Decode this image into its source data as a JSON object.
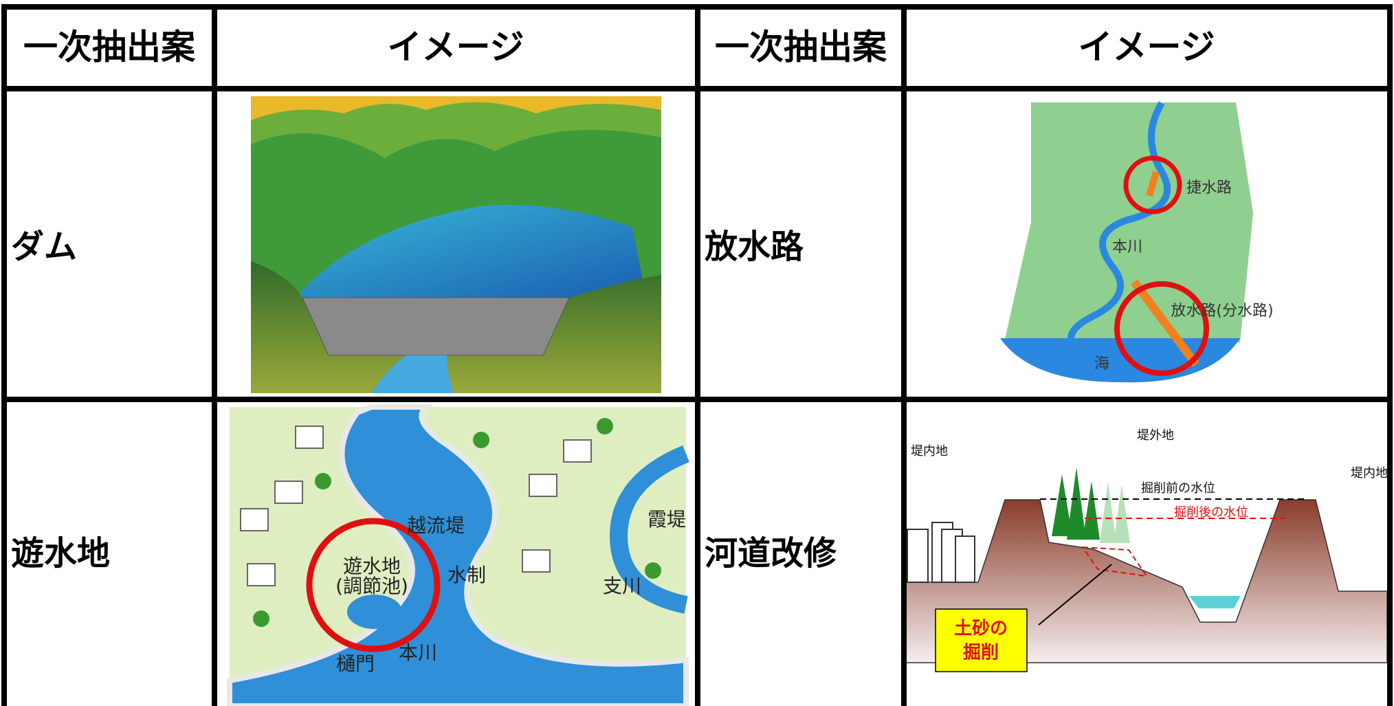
{
  "table": {
    "header": [
      "一次抽出案",
      "イメージ",
      "一次抽出案",
      "イメージ"
    ],
    "rows": [
      [
        "ダム",
        "放水路"
      ],
      [
        "遊水地",
        "河道改修"
      ]
    ]
  },
  "images": {
    "drainage": {
      "labels": [
        "捷水路",
        "本川",
        "放水路(分水路)",
        "海"
      ]
    },
    "retention": {
      "labels": [
        "越流堤",
        "遊水地",
        "(調節池)",
        "水制",
        "霞堤",
        "支川",
        "樋門",
        "本川"
      ]
    },
    "river": {
      "labels": [
        "堤外地",
        "堤内地",
        "堤内地",
        "掘削前の水位",
        "掘削後の水位",
        "土砂の",
        "掘削"
      ]
    }
  }
}
